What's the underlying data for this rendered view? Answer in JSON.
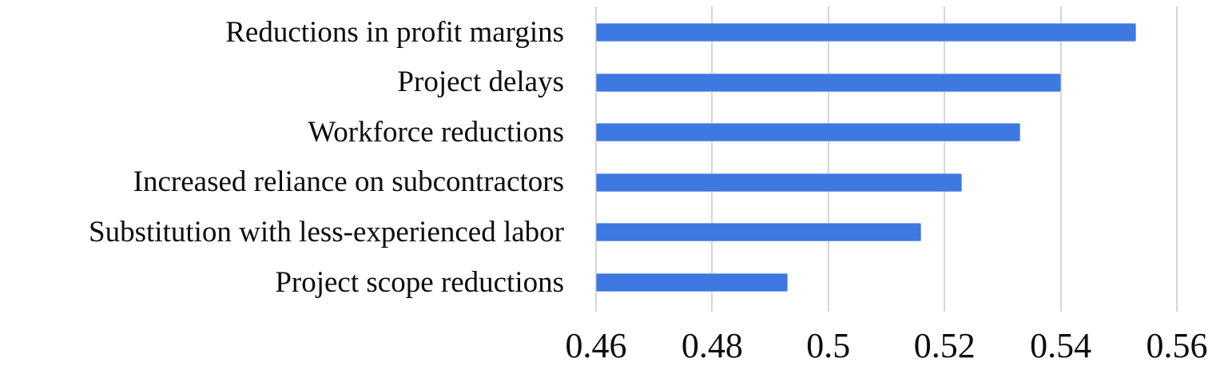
{
  "chart_data": {
    "type": "bar",
    "orientation": "horizontal",
    "title": "",
    "xlabel": "",
    "ylabel": "",
    "categories": [
      "Reductions in profit margins",
      "Project delays",
      "Workforce reductions",
      "Increased reliance on subcontractors",
      "Substitution with less-experienced labor",
      "Project scope reductions"
    ],
    "values": [
      0.553,
      0.54,
      0.533,
      0.523,
      0.516,
      0.493
    ],
    "xlim": [
      0.46,
      0.56
    ],
    "xticks": [
      0.46,
      0.48,
      0.5,
      0.52,
      0.54,
      0.56
    ],
    "xtick_labels": [
      "0.46",
      "0.48",
      "0.5",
      "0.52",
      "0.54",
      "0.56"
    ],
    "grid": true,
    "gridline_color": "#d6d6d6",
    "bar_color": "#3e79e1",
    "text_color": "#0d0d0d",
    "legend_position": "none"
  }
}
